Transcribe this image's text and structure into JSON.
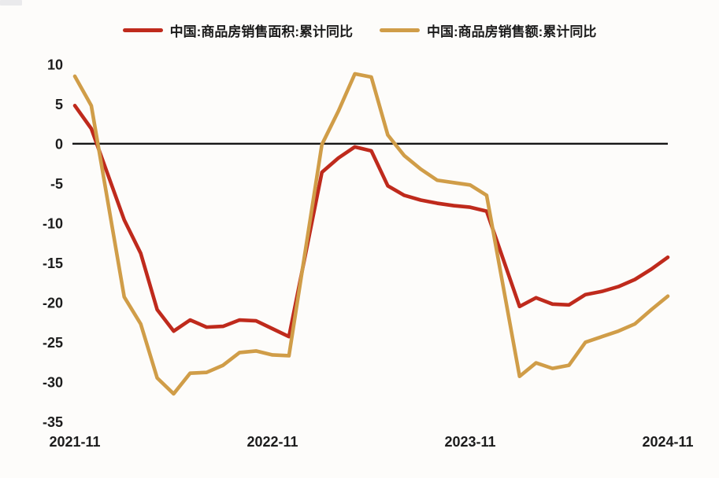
{
  "page": {
    "background": "#fdfcfa"
  },
  "chart_data": {
    "type": "line",
    "title": "",
    "legend_position": "top",
    "grid": false,
    "zero_line": true,
    "axis_color": "#151515",
    "text_color": "#1c1c1c",
    "ylim": [
      -35,
      10
    ],
    "yticks": [
      10,
      5,
      0,
      -5,
      -10,
      -15,
      -20,
      -25,
      -30,
      -35
    ],
    "xticks": [
      "2021-11",
      "2022-11",
      "2023-11",
      "2024-11"
    ],
    "x_unit": "year-month (monthly points, no January data published)",
    "months": [
      "2021-11",
      "2021-12",
      "2022-02",
      "2022-03",
      "2022-04",
      "2022-05",
      "2022-06",
      "2022-07",
      "2022-08",
      "2022-09",
      "2022-10",
      "2022-11",
      "2022-12",
      "2023-02",
      "2023-03",
      "2023-04",
      "2023-05",
      "2023-06",
      "2023-07",
      "2023-08",
      "2023-09",
      "2023-10",
      "2023-11",
      "2023-12",
      "2024-02",
      "2024-03",
      "2024-04",
      "2024-05",
      "2024-06",
      "2024-07",
      "2024-08",
      "2024-09",
      "2024-10",
      "2024-11"
    ],
    "series": [
      {
        "name": "中国:商品房销售面积:累计同比",
        "color": "#bf2a1c",
        "values": [
          4.8,
          1.9,
          -9.6,
          -13.8,
          -20.9,
          -23.6,
          -22.2,
          -23.1,
          -23.0,
          -22.2,
          -22.3,
          -23.3,
          -24.3,
          -3.6,
          -1.8,
          -0.4,
          -0.9,
          -5.3,
          -6.5,
          -7.1,
          -7.5,
          -7.8,
          -8.0,
          -8.5,
          -20.5,
          -19.4,
          -20.2,
          -20.3,
          -19.0,
          -18.6,
          -18.0,
          -17.1,
          -15.8,
          -14.3
        ]
      },
      {
        "name": "中国:商品房销售额:累计同比",
        "color": "#d09d48",
        "values": [
          8.5,
          4.8,
          -19.3,
          -22.7,
          -29.5,
          -31.5,
          -28.9,
          -28.8,
          -27.9,
          -26.3,
          -26.1,
          -26.6,
          -26.7,
          -0.1,
          4.1,
          8.8,
          8.4,
          1.1,
          -1.5,
          -3.2,
          -4.6,
          -4.9,
          -5.2,
          -6.5,
          -29.3,
          -27.6,
          -28.3,
          -27.9,
          -25.0,
          -24.3,
          -23.6,
          -22.7,
          -20.9,
          -19.2
        ]
      }
    ]
  }
}
